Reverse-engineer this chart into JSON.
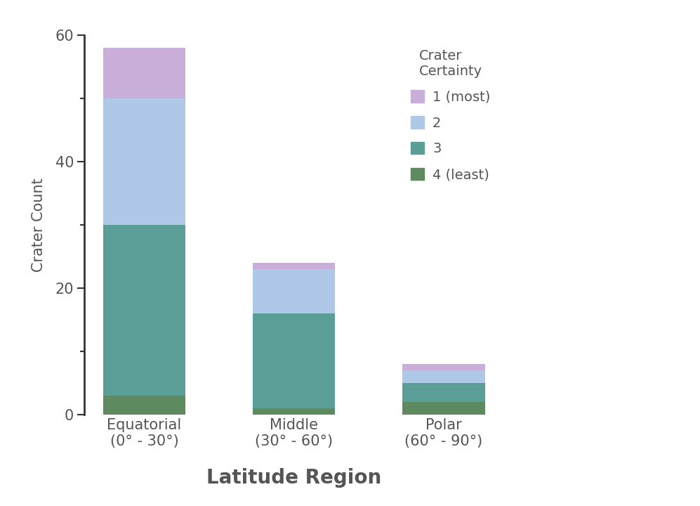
{
  "categories": [
    "Equatorial\n(0° - 30°)",
    "Middle\n(30° - 60°)",
    "Polar\n(60° - 90°)"
  ],
  "series": {
    "4 (least)": [
      3,
      1,
      2
    ],
    "3": [
      27,
      15,
      3
    ],
    "2": [
      20,
      7,
      2
    ],
    "1 (most)": [
      8,
      1,
      1
    ]
  },
  "colors": {
    "4 (least)": "#5d8a5e",
    "3": "#5b9e97",
    "2": "#b0c8e8",
    "1 (most)": "#c8aed8"
  },
  "ylabel": "Crater Count",
  "xlabel": "Latitude Region",
  "legend_title": "Crater\nCertainty",
  "ylim": [
    0,
    60
  ],
  "yticks": [
    0,
    20,
    40,
    60
  ],
  "minor_yticks": [
    10,
    30,
    50
  ],
  "bar_width": 0.55,
  "background_color": "#ffffff",
  "xlabel_fontsize": 20,
  "ylabel_fontsize": 15,
  "tick_fontsize": 15,
  "legend_fontsize": 14,
  "legend_title_fontsize": 14,
  "text_color": "#555555",
  "axis_color": "#333333"
}
